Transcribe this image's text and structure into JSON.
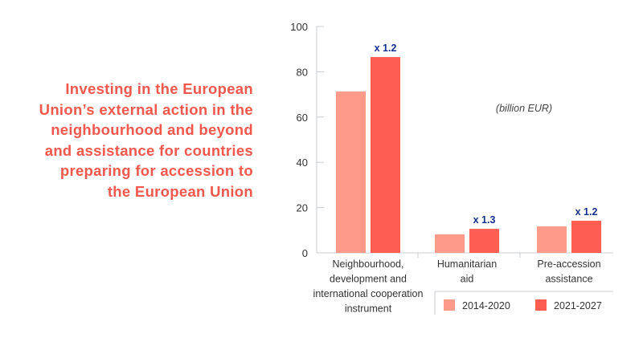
{
  "title_lines": [
    "Investing in the European",
    "Union’s external action in the",
    "neighbourhood and beyond",
    "and assistance for countries",
    "preparing for accession to",
    "the European Union"
  ],
  "chart_data": {
    "type": "bar",
    "title": "Investing in the European Union’s external action in the neighbourhood and beyond and assistance for countries preparing for accession to the European Union",
    "unit_note": "(billion EUR)",
    "categories": [
      [
        "Neighbourhood,",
        "development and",
        "international cooperation",
        "instrument"
      ],
      [
        "Humanitarian",
        "aid"
      ],
      [
        "Pre-accession",
        "assistance"
      ]
    ],
    "series": [
      {
        "name": "2014-2020",
        "color": "#fd9a8a",
        "values": [
          71.3,
          8.2,
          11.7
        ]
      },
      {
        "name": "2021-2027",
        "color": "#fe5d51",
        "values": [
          86.5,
          10.6,
          14.2
        ]
      }
    ],
    "multipliers": [
      "x 1.2",
      "x 1.3",
      "x 1.2"
    ],
    "ylim": [
      0,
      100
    ],
    "yticks": [
      0,
      20,
      40,
      60,
      80,
      100
    ],
    "legend": "bottom-right",
    "grid": false,
    "xlabel": "",
    "ylabel": ""
  }
}
